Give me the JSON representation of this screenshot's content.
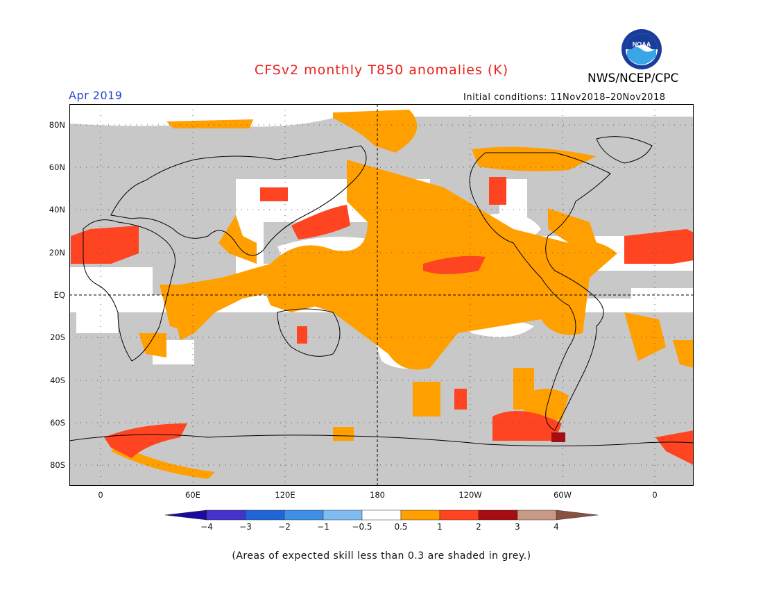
{
  "title": "CFSv2 monthly T850 anomalies (K)",
  "agency": "NWS/NCEP/CPC",
  "logo_text": "NOAA",
  "month": "Apr 2019",
  "initial_conditions": "Initial conditions: 11Nov2018–20Nov2018",
  "lat_labels": [
    "80N",
    "60N",
    "40N",
    "20N",
    "EQ",
    "20S",
    "40S",
    "60S",
    "80S"
  ],
  "lon_labels": [
    "0",
    "60E",
    "120E",
    "180",
    "120W",
    "60W",
    "0"
  ],
  "colorbar": {
    "labels": [
      "−4",
      "−3",
      "−2",
      "−1",
      "−0.5",
      "0.5",
      "1",
      "2",
      "3",
      "4"
    ],
    "colors": [
      "#1a0aa0",
      "#4433cc",
      "#1f66d6",
      "#3f8ee8",
      "#7fbcf0",
      "#ffffff",
      "#ffa000",
      "#ff4422",
      "#a50d12",
      "#c89a86",
      "#8a5040"
    ]
  },
  "note": "(Areas of expected skill less than 0.3 are shaded in grey.)",
  "legend_colors": {
    "grey": "#c8c8c8",
    "white": "#ffffff",
    "orange": "#ffa000",
    "red": "#ff4422",
    "darkred": "#a50d12"
  }
}
